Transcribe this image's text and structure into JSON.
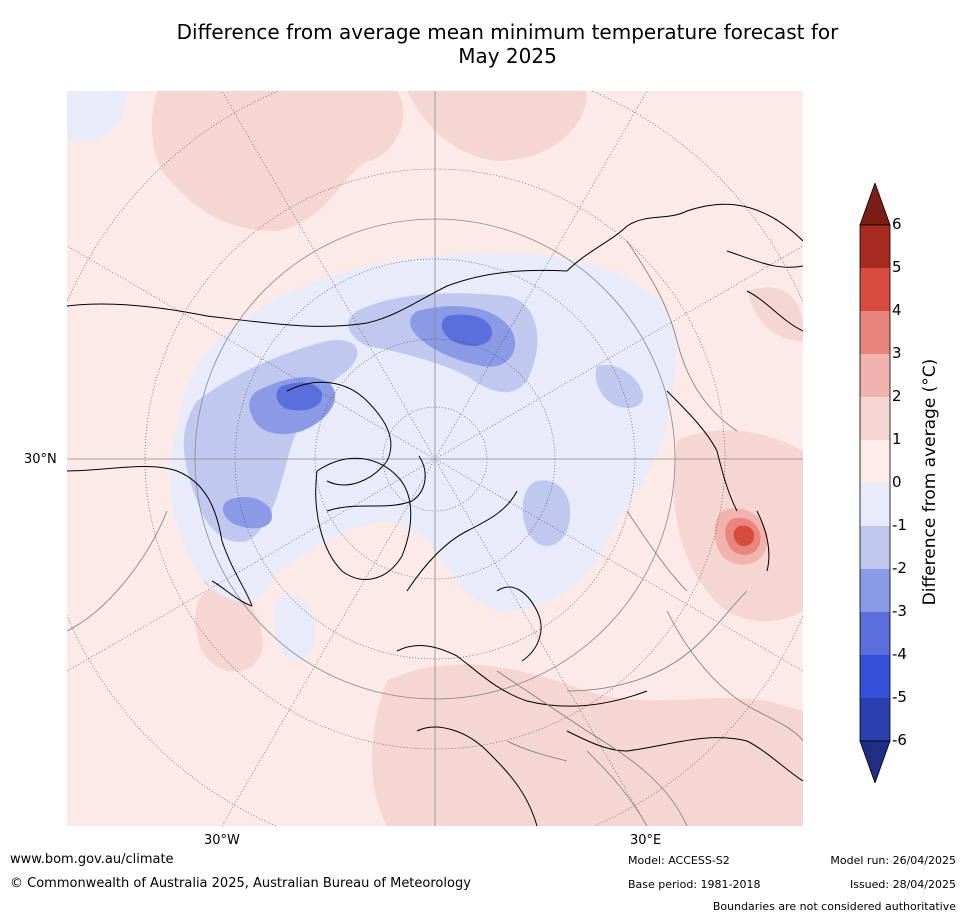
{
  "title_line1": "Difference from average mean minimum temperature forecast for",
  "title_line2": "May 2025",
  "map": {
    "projection": "north-polar-stereographic",
    "lat_label_left": "30°N",
    "lon_label_left": "30°W",
    "lon_label_right": "30°E",
    "ocean_color": "#fceae8"
  },
  "colorbar": {
    "label": "Difference from average (°C)",
    "ticks": [
      "6",
      "5",
      "4",
      "3",
      "2",
      "1",
      "0",
      "-1",
      "-2",
      "-3",
      "-4",
      "-5",
      "-6"
    ],
    "bins": [
      {
        "range": ">6",
        "color": "#7b1e18"
      },
      {
        "range": "5 to 6",
        "color": "#a82b22"
      },
      {
        "range": "4 to 5",
        "color": "#d84c3f"
      },
      {
        "range": "3 to 4",
        "color": "#e9857e"
      },
      {
        "range": "2 to 3",
        "color": "#f1b3ad"
      },
      {
        "range": "1 to 2",
        "color": "#f6d6d2"
      },
      {
        "range": "0 to 1",
        "color": "#fcebe8"
      },
      {
        "range": "-1 to 0",
        "color": "#e8ebfa"
      },
      {
        "range": "-2 to -1",
        "color": "#c1c8f0"
      },
      {
        "range": "-3 to -2",
        "color": "#8a9ae6"
      },
      {
        "range": "-4 to -3",
        "color": "#5a6fdc"
      },
      {
        "range": "-5 to -4",
        "color": "#3650d8"
      },
      {
        "range": "-6 to -5",
        "color": "#2b3faf"
      },
      {
        "range": "<-6",
        "color": "#1f2d82"
      }
    ]
  },
  "footer": {
    "website": "www.bom.gov.au/climate",
    "copyright": "© Commonwealth of Australia 2025, Australian Bureau of Meteorology",
    "model": "Model: ACCESS-S2",
    "base_period": "Base period: 1981-2018",
    "model_run": "Model run: 26/04/2025",
    "issued": "Issued: 28/04/2025",
    "disclaimer": "Boundaries are not considered authoritative"
  }
}
